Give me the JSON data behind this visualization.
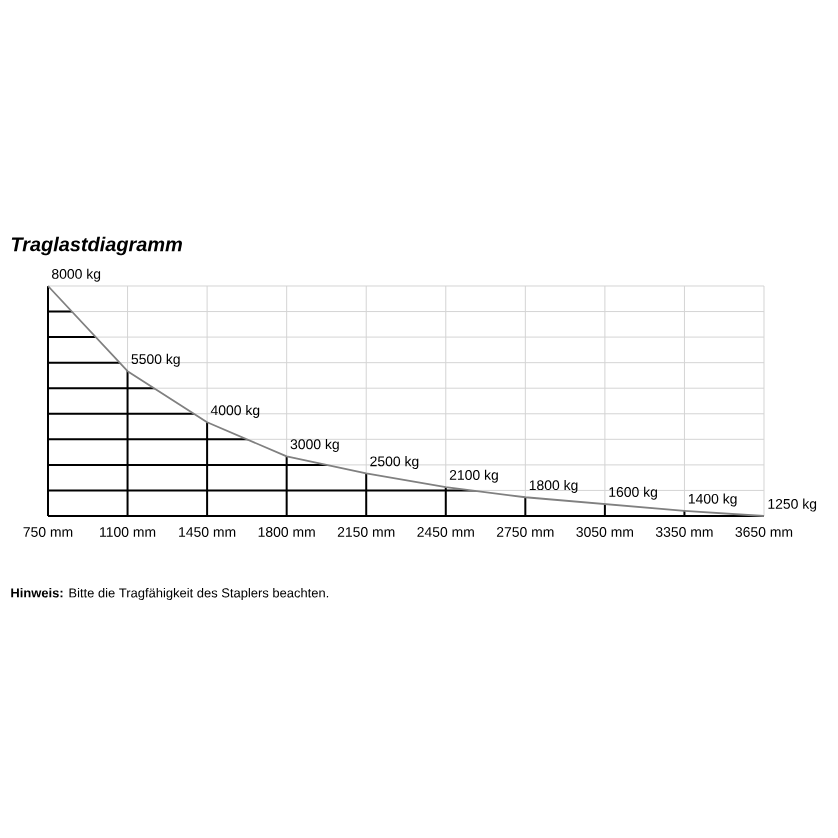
{
  "chart_data": {
    "type": "line",
    "title": "Traglastdiagramm",
    "categories": [
      "750 mm",
      "1100 mm",
      "1450 mm",
      "1800 mm",
      "2150 mm",
      "2450 mm",
      "2750 mm",
      "3050 mm",
      "3350 mm",
      "3650 mm"
    ],
    "values": [
      8000,
      5500,
      4000,
      3000,
      2500,
      2100,
      1800,
      1600,
      1400,
      1250
    ],
    "value_labels": [
      "8000 kg",
      "5500 kg",
      "4000 kg",
      "3000 kg",
      "2500 kg",
      "2100 kg",
      "1800 kg",
      "1600 kg",
      "1400 kg",
      "1250 kg"
    ],
    "color": "#808080",
    "ylim": [
      1250,
      8000
    ],
    "yticks": [
      {
        "value": 1250,
        "label": null
      },
      {
        "value": 2000,
        "label": null
      },
      {
        "value": 2750,
        "label": null
      },
      {
        "value": 3500,
        "label": null
      },
      {
        "value": 4250,
        "label": null
      },
      {
        "value": 5000,
        "label": null
      },
      {
        "value": 5750,
        "label": null
      },
      {
        "value": 6500,
        "label": null
      },
      {
        "value": 7250,
        "label": null
      },
      {
        "value": 8000,
        "label": null
      }
    ],
    "tick_labels": "x",
    "grid": true,
    "annotations": [
      "**Hinweis:** Bitte die Tragfähigkeit des Staplers beachten."
    ]
  }
}
